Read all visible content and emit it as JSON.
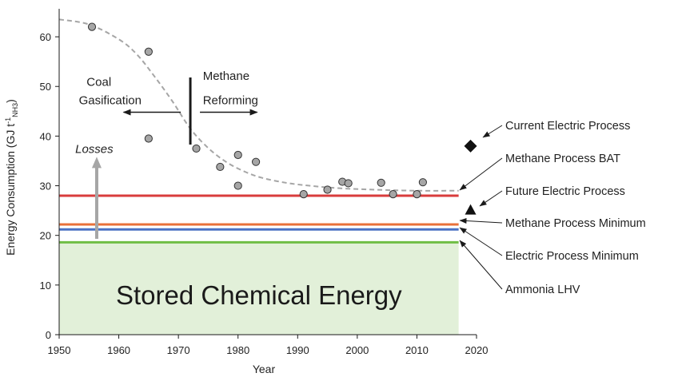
{
  "chart_data": {
    "type": "scatter",
    "xlabel": "Year",
    "ylabel": "Energy Consumption (GJ t⁻¹NH₃)",
    "ylabel_parts": {
      "main": "Energy Consumption (GJ t",
      "sup": "-1",
      "sub": "NH3",
      "close": ")"
    },
    "xlim": [
      1950,
      2020
    ],
    "ylim": [
      0,
      65
    ],
    "xticks": [
      1950,
      1960,
      1970,
      1980,
      1990,
      2000,
      2010,
      2020
    ],
    "yticks": [
      0,
      10,
      20,
      30,
      40,
      50,
      60
    ],
    "grid": false,
    "series": [
      {
        "marker": "circle",
        "color": "#a6a6a6",
        "x": [
          1955.5,
          1965,
          1965,
          1973,
          1977,
          1980,
          1980,
          1983,
          1991,
          1995,
          1997.5,
          1998.5,
          2004,
          2006,
          2010,
          2011
        ],
        "y": [
          62,
          57,
          39.5,
          37.5,
          33.8,
          36.2,
          30,
          34.8,
          28.3,
          29.2,
          30.8,
          30.5,
          30.6,
          28.3,
          28.3,
          30.7
        ]
      }
    ],
    "trend_curve": {
      "style": "dashed",
      "color": "#a6a6a6",
      "x": [
        1950,
        1955,
        1960,
        1963,
        1966,
        1969,
        1972,
        1975,
        1978,
        1981,
        1984,
        1988,
        1992,
        1997,
        2003,
        2010,
        2017
      ],
      "y": [
        63.5,
        62.5,
        59.5,
        56.5,
        52,
        47,
        41.5,
        37.6,
        34.8,
        32.9,
        31.6,
        30.6,
        30,
        29.5,
        29.2,
        29,
        29
      ]
    },
    "reference_lines": [
      {
        "label": "Methane Process BAT",
        "y": 28,
        "color": "#d93c3c"
      },
      {
        "label": "Methane Process Minimum",
        "y": 22.2,
        "color": "#e8703a"
      },
      {
        "label": "Electric Process Minimum",
        "y": 21.2,
        "color": "#4a72c4"
      },
      {
        "label": "Ammonia LHV",
        "y": 18.6,
        "color": "#6fbe45"
      }
    ],
    "reference_line_xmax": 2017,
    "markers": [
      {
        "label": "Current Electric Process",
        "x": 2019,
        "y": 38,
        "shape": "diamond"
      },
      {
        "label": "Future Electric Process",
        "x": 2019,
        "y": 25,
        "shape": "triangle"
      }
    ],
    "region": {
      "label": "Stored Chemical Energy",
      "x": [
        1950,
        2017
      ],
      "y": [
        0,
        18.6
      ],
      "color": "#e2f0d9"
    },
    "annotations": {
      "coal": {
        "lines": [
          "Coal",
          "Gasification"
        ]
      },
      "methane": {
        "lines": [
          "Methane",
          "Reforming"
        ]
      },
      "losses": {
        "label": "Losses"
      },
      "divider_year": 1972
    }
  }
}
